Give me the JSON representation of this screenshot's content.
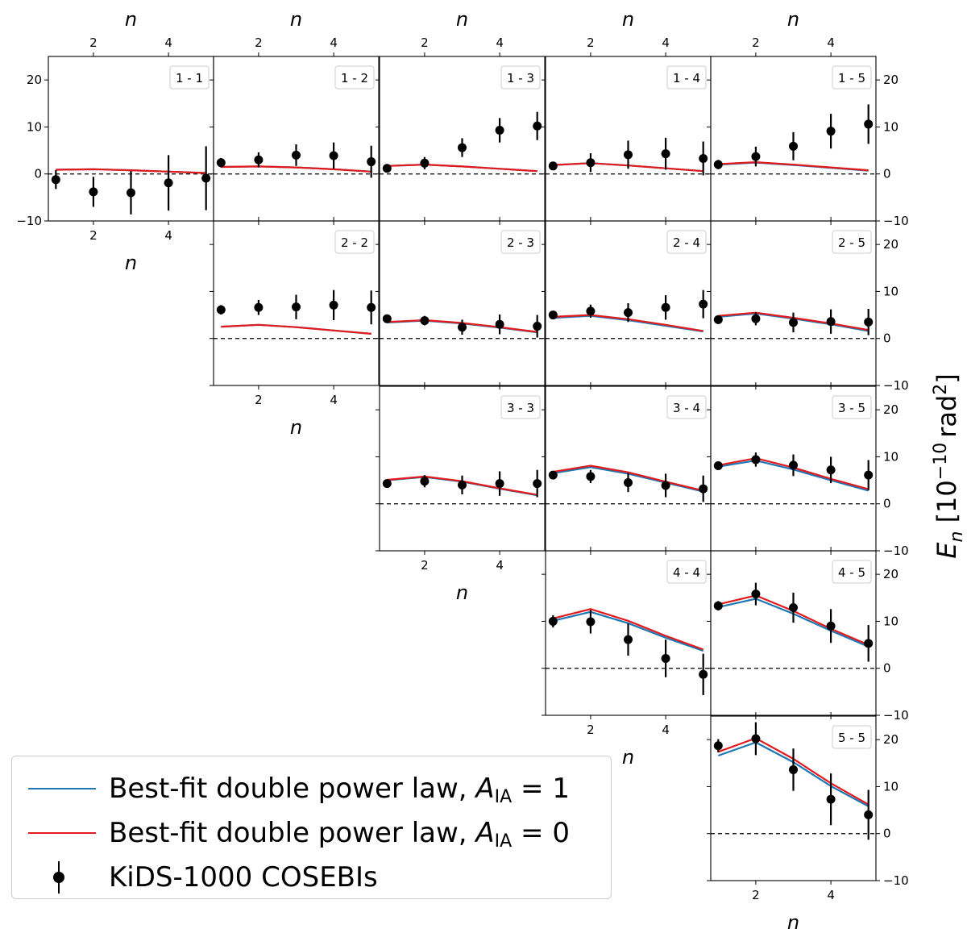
{
  "figure": {
    "xlabel": "n",
    "ylabel": "E_n [10^{-10} rad^2]",
    "ylabel_parts": {
      "symbol": "E",
      "subscript": "n",
      "unit_open": "[10",
      "exp": "−10",
      "unit_mid": "rad",
      "exp2": "2",
      "unit_close": "]"
    },
    "xtick_labels": [
      "2",
      "4"
    ],
    "ytick_labels": [
      "20",
      "10",
      "0",
      "−10"
    ],
    "ylim": [
      -10,
      25
    ],
    "xlim": [
      0.8,
      5.2
    ]
  },
  "legend": {
    "entries": [
      {
        "label_prefix": "Best-fit double power law, ",
        "sym": "A",
        "sub": "IA",
        "suffix": " = 1",
        "color": "#1f77b4"
      },
      {
        "label_prefix": "Best-fit double power law, ",
        "sym": "A",
        "sub": "IA",
        "suffix": " = 0",
        "color": "#e31a1c"
      },
      {
        "label": "KiDS-1000 COSEBIs",
        "color": "#000000"
      }
    ]
  },
  "chart_data": [
    {
      "panel": "1 - 1",
      "type": "line",
      "x": [
        1,
        2,
        3,
        4,
        5
      ],
      "series": [
        {
          "name": "Best-fit double power law, A_IA = 1",
          "values": [
            0.9,
            1.0,
            0.8,
            0.5,
            0.2
          ]
        },
        {
          "name": "Best-fit double power law, A_IA = 0",
          "values": [
            0.9,
            1.0,
            0.8,
            0.5,
            0.2
          ]
        },
        {
          "name": "KiDS-1000 COSEBIs",
          "values": [
            -1.2,
            -3.8,
            -4.0,
            -1.9,
            -0.9
          ],
          "errors": [
            2.0,
            3.2,
            4.6,
            5.9,
            6.8
          ]
        }
      ]
    },
    {
      "panel": "1 - 2",
      "type": "line",
      "x": [
        1,
        2,
        3,
        4,
        5
      ],
      "series": [
        {
          "name": "Best-fit double power law, A_IA = 1",
          "values": [
            1.5,
            1.6,
            1.4,
            1.0,
            0.5
          ]
        },
        {
          "name": "Best-fit double power law, A_IA = 0",
          "values": [
            1.5,
            1.6,
            1.4,
            1.0,
            0.5
          ]
        },
        {
          "name": "KiDS-1000 COSEBIs",
          "values": [
            2.4,
            3.0,
            4.0,
            3.9,
            2.6
          ],
          "errors": [
            1.0,
            1.6,
            2.3,
            2.8,
            3.4
          ]
        }
      ]
    },
    {
      "panel": "1 - 3",
      "type": "line",
      "x": [
        1,
        2,
        3,
        4,
        5
      ],
      "series": [
        {
          "name": "Best-fit double power law, A_IA = 1",
          "values": [
            1.7,
            2.0,
            1.6,
            1.1,
            0.6
          ]
        },
        {
          "name": "Best-fit double power law, A_IA = 0",
          "values": [
            1.7,
            2.0,
            1.6,
            1.1,
            0.6
          ]
        },
        {
          "name": "KiDS-1000 COSEBIs",
          "values": [
            1.2,
            2.3,
            5.6,
            9.3,
            10.2
          ],
          "errors": [
            0.9,
            1.3,
            2.0,
            2.6,
            3.0
          ]
        }
      ]
    },
    {
      "panel": "1 - 4",
      "type": "line",
      "x": [
        1,
        2,
        3,
        4,
        5
      ],
      "series": [
        {
          "name": "Best-fit double power law, A_IA = 1",
          "values": [
            1.9,
            2.3,
            1.8,
            1.2,
            0.6
          ]
        },
        {
          "name": "Best-fit double power law, A_IA = 0",
          "values": [
            1.9,
            2.3,
            1.8,
            1.2,
            0.6
          ]
        },
        {
          "name": "KiDS-1000 COSEBIs",
          "values": [
            1.7,
            2.4,
            4.1,
            4.3,
            3.3
          ],
          "errors": [
            0.9,
            2.0,
            3.0,
            3.4,
            3.6
          ]
        }
      ]
    },
    {
      "panel": "1 - 5",
      "type": "line",
      "x": [
        1,
        2,
        3,
        4,
        5
      ],
      "series": [
        {
          "name": "Best-fit double power law, A_IA = 1",
          "values": [
            2.0,
            2.4,
            1.9,
            1.3,
            0.7
          ]
        },
        {
          "name": "Best-fit double power law, A_IA = 0",
          "values": [
            2.1,
            2.5,
            2.0,
            1.4,
            0.8
          ]
        },
        {
          "name": "KiDS-1000 COSEBIs",
          "values": [
            2.0,
            3.7,
            5.9,
            9.1,
            10.6
          ],
          "errors": [
            1.0,
            2.1,
            3.0,
            3.7,
            4.2
          ]
        }
      ]
    },
    {
      "panel": "2 - 2",
      "type": "line",
      "x": [
        1,
        2,
        3,
        4,
        5
      ],
      "series": [
        {
          "name": "Best-fit double power law, A_IA = 1",
          "values": [
            2.5,
            2.9,
            2.4,
            1.7,
            1.0
          ]
        },
        {
          "name": "Best-fit double power law, A_IA = 0",
          "values": [
            2.5,
            2.9,
            2.4,
            1.7,
            1.0
          ]
        },
        {
          "name": "KiDS-1000 COSEBIs",
          "values": [
            6.1,
            6.6,
            6.7,
            7.1,
            6.6
          ],
          "errors": [
            1.0,
            1.6,
            2.6,
            3.2,
            3.6
          ]
        }
      ]
    },
    {
      "panel": "2 - 3",
      "type": "line",
      "x": [
        1,
        2,
        3,
        4,
        5
      ],
      "series": [
        {
          "name": "Best-fit double power law, A_IA = 1",
          "values": [
            3.4,
            3.8,
            3.2,
            2.3,
            1.3
          ]
        },
        {
          "name": "Best-fit double power law, A_IA = 0",
          "values": [
            3.5,
            3.9,
            3.3,
            2.4,
            1.4
          ]
        },
        {
          "name": "KiDS-1000 COSEBIs",
          "values": [
            4.2,
            3.8,
            2.4,
            3.0,
            2.6
          ],
          "errors": [
            0.8,
            1.0,
            1.6,
            2.1,
            2.4
          ]
        }
      ]
    },
    {
      "panel": "2 - 4",
      "type": "line",
      "x": [
        1,
        2,
        3,
        4,
        5
      ],
      "series": [
        {
          "name": "Best-fit double power law, A_IA = 1",
          "values": [
            4.4,
            4.8,
            3.9,
            2.7,
            1.5
          ]
        },
        {
          "name": "Best-fit double power law, A_IA = 0",
          "values": [
            4.6,
            5.0,
            4.1,
            2.9,
            1.6
          ]
        },
        {
          "name": "KiDS-1000 COSEBIs",
          "values": [
            5.0,
            5.8,
            5.5,
            6.6,
            7.3
          ],
          "errors": [
            0.8,
            1.4,
            2.0,
            2.6,
            3.0
          ]
        }
      ]
    },
    {
      "panel": "2 - 5",
      "type": "line",
      "x": [
        1,
        2,
        3,
        4,
        5
      ],
      "series": [
        {
          "name": "Best-fit double power law, A_IA = 1",
          "values": [
            4.6,
            5.3,
            4.2,
            3.0,
            1.6
          ]
        },
        {
          "name": "Best-fit double power law, A_IA = 0",
          "values": [
            4.8,
            5.5,
            4.4,
            3.2,
            1.8
          ]
        },
        {
          "name": "KiDS-1000 COSEBIs",
          "values": [
            4.0,
            4.2,
            3.4,
            3.6,
            3.5
          ],
          "errors": [
            0.9,
            1.4,
            2.1,
            2.6,
            2.8
          ]
        }
      ]
    },
    {
      "panel": "3 - 3",
      "type": "line",
      "x": [
        1,
        2,
        3,
        4,
        5
      ],
      "series": [
        {
          "name": "Best-fit double power law, A_IA = 1",
          "values": [
            5.0,
            5.7,
            4.7,
            3.2,
            1.8
          ]
        },
        {
          "name": "Best-fit double power law, A_IA = 0",
          "values": [
            5.1,
            5.8,
            4.8,
            3.3,
            1.9
          ]
        },
        {
          "name": "KiDS-1000 COSEBIs",
          "values": [
            4.3,
            4.8,
            4.0,
            4.3,
            4.3
          ],
          "errors": [
            0.8,
            1.3,
            2.0,
            2.6,
            2.9
          ]
        }
      ]
    },
    {
      "panel": "3 - 4",
      "type": "line",
      "x": [
        1,
        2,
        3,
        4,
        5
      ],
      "series": [
        {
          "name": "Best-fit double power law, A_IA = 1",
          "values": [
            6.5,
            7.8,
            6.4,
            4.5,
            2.6
          ]
        },
        {
          "name": "Best-fit double power law, A_IA = 0",
          "values": [
            6.8,
            8.1,
            6.7,
            4.7,
            2.8
          ]
        },
        {
          "name": "KiDS-1000 COSEBIs",
          "values": [
            6.1,
            5.8,
            4.5,
            3.9,
            3.2
          ],
          "errors": [
            0.8,
            1.4,
            2.0,
            2.5,
            2.8
          ]
        }
      ]
    },
    {
      "panel": "3 - 5",
      "type": "line",
      "x": [
        1,
        2,
        3,
        4,
        5
      ],
      "series": [
        {
          "name": "Best-fit double power law, A_IA = 1",
          "values": [
            7.9,
            9.2,
            7.3,
            5.0,
            2.8
          ]
        },
        {
          "name": "Best-fit double power law, A_IA = 0",
          "values": [
            8.2,
            9.7,
            7.7,
            5.3,
            3.1
          ]
        },
        {
          "name": "KiDS-1000 COSEBIs",
          "values": [
            8.1,
            9.4,
            8.2,
            7.2,
            6.1
          ],
          "errors": [
            0.8,
            1.5,
            2.3,
            2.8,
            3.2
          ]
        }
      ]
    },
    {
      "panel": "4 - 4",
      "type": "line",
      "x": [
        1,
        2,
        3,
        4,
        5
      ],
      "series": [
        {
          "name": "Best-fit double power law, A_IA = 1",
          "values": [
            10.1,
            12.0,
            9.6,
            6.5,
            3.7
          ]
        },
        {
          "name": "Best-fit double power law, A_IA = 0",
          "values": [
            10.6,
            12.6,
            10.1,
            6.9,
            4.0
          ]
        },
        {
          "name": "KiDS-1000 COSEBIs",
          "values": [
            10.0,
            9.9,
            6.1,
            2.1,
            -1.3
          ],
          "errors": [
            1.3,
            2.5,
            3.4,
            4.0,
            4.4
          ]
        }
      ]
    },
    {
      "panel": "4 - 5",
      "type": "line",
      "x": [
        1,
        2,
        3,
        4,
        5
      ],
      "series": [
        {
          "name": "Best-fit double power law, A_IA = 1",
          "values": [
            13.0,
            14.8,
            11.6,
            8.0,
            4.6
          ]
        },
        {
          "name": "Best-fit double power law, A_IA = 0",
          "values": [
            13.6,
            15.5,
            12.2,
            8.4,
            5.0
          ]
        },
        {
          "name": "KiDS-1000 COSEBIs",
          "values": [
            13.3,
            15.8,
            12.9,
            9.0,
            5.3
          ],
          "errors": [
            1.0,
            2.4,
            3.2,
            3.6,
            3.9
          ]
        }
      ]
    },
    {
      "panel": "5 - 5",
      "type": "line",
      "x": [
        1,
        2,
        3,
        4,
        5
      ],
      "series": [
        {
          "name": "Best-fit double power law, A_IA = 1",
          "values": [
            16.6,
            19.4,
            15.2,
            10.1,
            5.8
          ]
        },
        {
          "name": "Best-fit double power law, A_IA = 0",
          "values": [
            17.4,
            20.3,
            15.9,
            10.7,
            6.2
          ]
        },
        {
          "name": "KiDS-1000 COSEBIs",
          "values": [
            18.7,
            20.2,
            13.6,
            7.3,
            4.0
          ],
          "errors": [
            1.4,
            3.5,
            4.5,
            5.5,
            5.3
          ]
        }
      ]
    }
  ]
}
